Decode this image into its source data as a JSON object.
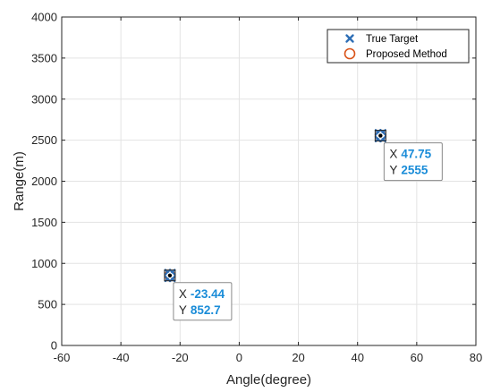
{
  "chart_data": {
    "type": "scatter",
    "title": "",
    "xlabel": "Angle(degree)",
    "ylabel": "Range(m)",
    "xlim": [
      -60,
      80
    ],
    "ylim": [
      0,
      4000
    ],
    "xticks": [
      -60,
      -40,
      -20,
      0,
      20,
      40,
      60,
      80
    ],
    "yticks": [
      0,
      500,
      1000,
      1500,
      2000,
      2500,
      3000,
      3500,
      4000
    ],
    "grid": true,
    "legend_position": "top-right",
    "series": [
      {
        "name": "True Target",
        "marker": "x",
        "color": "#2f6fb6",
        "points": [
          {
            "x": -24.2,
            "y": 893
          },
          {
            "x": -22.6,
            "y": 893
          },
          {
            "x": -24.2,
            "y": 812
          },
          {
            "x": -22.6,
            "y": 812
          },
          {
            "x": 46.9,
            "y": 2596
          },
          {
            "x": 48.6,
            "y": 2596
          },
          {
            "x": 46.9,
            "y": 2514
          },
          {
            "x": 48.6,
            "y": 2514
          }
        ]
      },
      {
        "name": "Proposed Method",
        "marker": "o",
        "color": "#d95319",
        "points": [
          {
            "x": -23.44,
            "y": 852.7
          },
          {
            "x": 47.75,
            "y": 2555
          }
        ]
      }
    ],
    "datatips": [
      {
        "x_label": "X",
        "x_value": "-23.44",
        "y_label": "Y",
        "y_value": "852.7",
        "anchor": {
          "x": -23.44,
          "y": 852.7
        }
      },
      {
        "x_label": "X",
        "x_value": "47.75",
        "y_label": "Y",
        "y_value": "2555",
        "anchor": {
          "x": 47.75,
          "y": 2555
        }
      }
    ],
    "datatip_value_color": "#1a8cd8"
  }
}
